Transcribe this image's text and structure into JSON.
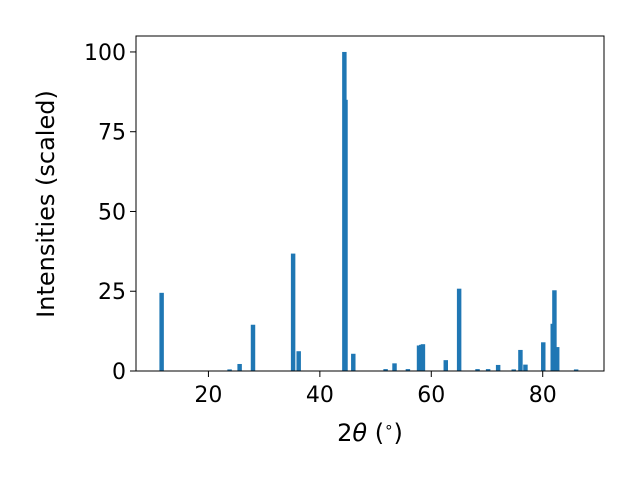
{
  "chart_data": {
    "type": "bar",
    "title": "",
    "xlabel_parts": [
      "2",
      "θ",
      " (",
      "∘",
      ")"
    ],
    "ylabel": "Intensities (scaled)",
    "xlim": [
      7,
      91
    ],
    "ylim": [
      0,
      105
    ],
    "xticks": [
      20,
      40,
      60,
      80
    ],
    "yticks": [
      0,
      25,
      50,
      75,
      100
    ],
    "bar_width_deg": 0.8,
    "bar_color": "#1f77b4",
    "x": [
      11.6,
      23.8,
      25.6,
      28.0,
      35.2,
      36.2,
      44.4,
      44.6,
      46.0,
      51.8,
      53.4,
      55.8,
      57.8,
      58.2,
      58.5,
      62.6,
      65.0,
      68.3,
      70.2,
      72.0,
      74.8,
      76.0,
      76.9,
      80.1,
      81.8,
      82.1,
      82.6,
      86.0
    ],
    "values": [
      24.5,
      0.5,
      2.2,
      14.5,
      36.8,
      6.2,
      100.0,
      85.0,
      5.4,
      0.6,
      2.4,
      0.6,
      8.0,
      8.2,
      8.4,
      3.4,
      25.8,
      0.6,
      0.6,
      1.9,
      0.5,
      6.6,
      2.0,
      9.0,
      14.8,
      25.3,
      7.5,
      0.5
    ]
  }
}
